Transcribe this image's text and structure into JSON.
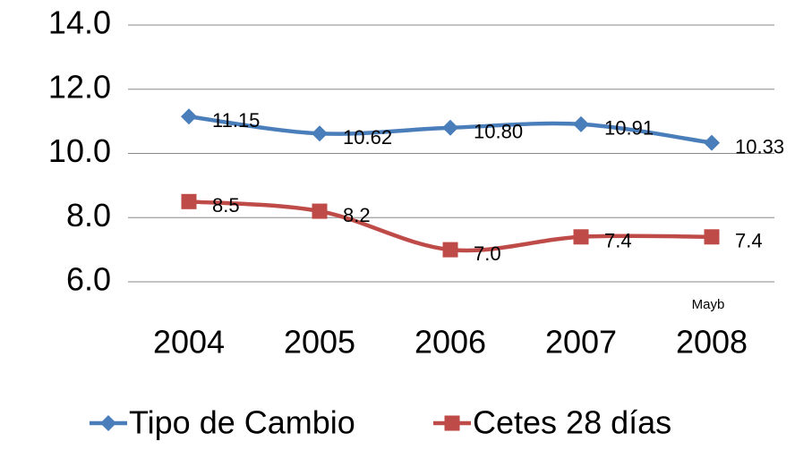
{
  "chart_data": {
    "type": "line",
    "categories": [
      "2004",
      "2005",
      "2006",
      "2007",
      "2008"
    ],
    "annotation": "Mayb",
    "series": [
      {
        "name": "Tipo de Cambio",
        "color": "#4a7ebb",
        "marker": "diamond",
        "values": [
          11.15,
          10.62,
          10.8,
          10.91,
          10.33
        ],
        "value_labels": [
          "11.15",
          "10.62",
          "10.80",
          "10.91",
          "10.33"
        ]
      },
      {
        "name": "Cetes 28 días",
        "color": "#be4b48",
        "marker": "square",
        "values": [
          8.5,
          8.2,
          7.0,
          7.4,
          7.4
        ],
        "value_labels": [
          "8.5",
          "8.2",
          "7.0",
          "7.4",
          "7.4"
        ]
      }
    ],
    "ylim": [
      6,
      14
    ],
    "yticks": [
      {
        "value": 6,
        "label": "6.0"
      },
      {
        "value": 8,
        "label": "8.0"
      },
      {
        "value": 10,
        "label": "10.0"
      },
      {
        "value": 12,
        "label": "12.0"
      },
      {
        "value": 14,
        "label": "14.0"
      }
    ],
    "grid": true,
    "legend": "bottom"
  }
}
